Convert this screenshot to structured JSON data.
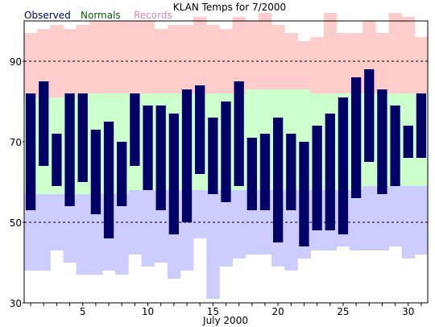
{
  "chart_data": {
    "type": "bar",
    "title": "KLAN Temps for 7/2000",
    "xlabel": "July 2000",
    "ylabel": "",
    "ylim": [
      30,
      100
    ],
    "xlim": [
      0.5,
      31.5
    ],
    "yticks": [
      30,
      50,
      70,
      90
    ],
    "xticks": [
      5,
      10,
      15,
      20,
      25,
      30
    ],
    "gridlines_y": [
      50,
      90
    ],
    "legend": [
      {
        "name": "Observed",
        "color": "#000066"
      },
      {
        "name": "Normals",
        "color": "#006600"
      },
      {
        "name": "Records",
        "color": "#dd88aa"
      }
    ],
    "legend_position": "top-left",
    "colors": {
      "observed": "#000066",
      "normal_high": "#ccffcc",
      "normal_low": "#ccccff",
      "record_band": "#ffcccc",
      "gridline": "#000000"
    },
    "days": [
      1,
      2,
      3,
      4,
      5,
      6,
      7,
      8,
      9,
      10,
      11,
      12,
      13,
      14,
      15,
      16,
      17,
      18,
      19,
      20,
      21,
      22,
      23,
      24,
      25,
      26,
      27,
      28,
      29,
      30,
      31
    ],
    "observed_high": [
      82,
      85,
      72,
      82,
      82,
      73,
      75,
      70,
      82,
      79,
      79,
      77,
      83,
      84,
      76,
      80,
      85,
      71,
      72,
      76,
      72,
      70,
      74,
      77,
      81,
      86,
      88,
      83,
      79,
      74,
      82
    ],
    "observed_low": [
      53,
      64,
      59,
      54,
      60,
      52,
      46,
      54,
      64,
      58,
      53,
      47,
      50,
      62,
      57,
      55,
      59,
      53,
      53,
      45,
      53,
      44,
      48,
      48,
      47,
      56,
      65,
      57,
      59,
      66,
      66
    ],
    "normal_high": [
      81,
      81,
      81,
      81,
      82,
      82,
      82,
      82,
      82,
      82,
      82,
      82,
      82,
      82,
      82,
      82,
      82,
      83,
      83,
      83,
      83,
      83,
      82,
      82,
      82,
      82,
      82,
      82,
      82,
      82,
      82
    ],
    "normal_low": [
      57,
      57,
      57,
      57,
      57,
      57,
      57,
      57,
      58,
      58,
      58,
      58,
      58,
      58,
      58,
      58,
      58,
      58,
      58,
      58,
      58,
      58,
      58,
      58,
      58,
      58,
      59,
      59,
      59,
      59,
      59
    ],
    "record_high": [
      97,
      98,
      99,
      98,
      99,
      100,
      100,
      100,
      100,
      100,
      98,
      99,
      99,
      101,
      99,
      98,
      101,
      100,
      102,
      99,
      97,
      95,
      96,
      102,
      97,
      97,
      100,
      97,
      102,
      101,
      96
    ],
    "record_low": [
      38,
      38,
      43,
      40,
      37,
      37,
      38,
      37,
      42,
      39,
      40,
      36,
      38,
      46,
      31,
      39,
      41,
      42,
      42,
      39,
      38,
      41,
      43,
      43,
      44,
      43,
      43,
      43,
      44,
      41,
      42
    ]
  }
}
